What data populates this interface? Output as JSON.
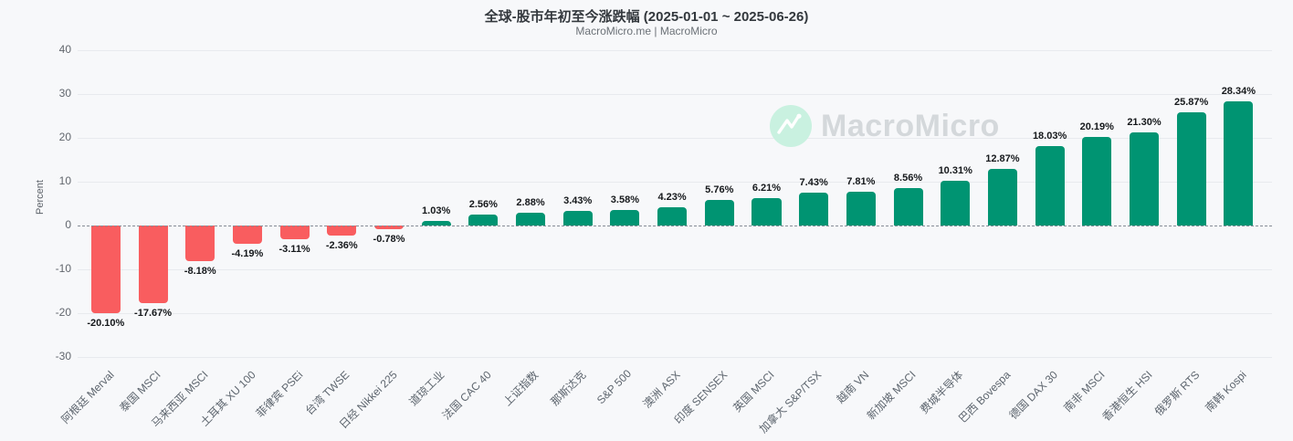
{
  "title": "全球-股市年初至今涨跌幅 (2025-01-01 ~ 2025-06-26)",
  "subtitle": "MacroMicro.me | MacroMicro",
  "watermark": {
    "text": "MacroMicro",
    "icon": "macromicro-mountain-logo"
  },
  "colors": {
    "positive": "#009472",
    "negative": "#f95d5f",
    "background": "#f7f8fa",
    "grid": "#e8eaee",
    "zero_line": "#858c96",
    "value_label": "#15181b",
    "axis_text": "#61666d",
    "watermark_circle": "#c9f1e0"
  },
  "chart_data": {
    "type": "bar",
    "title": "全球-股市年初至今涨跌幅 (2025-01-01 ~ 2025-06-26)",
    "subtitle": "MacroMicro.me | MacroMicro",
    "xlabel": "",
    "ylabel": "Percent",
    "ylim": [
      -30,
      40
    ],
    "yticks": [
      40,
      30,
      20,
      10,
      0,
      -10,
      -20,
      -30
    ],
    "grid": true,
    "zero_line_style": "dashed",
    "legend_position": "none",
    "categories": [
      "阿根廷 Merval",
      "泰国 MSCI",
      "马来西亚 MSCI",
      "土耳其 XU 100",
      "菲律宾 PSEi",
      "台湾 TWSE",
      "日经 Nikkei 225",
      "道琼工业",
      "法国 CAC 40",
      "上证指数",
      "那斯达克",
      "S&P 500",
      "澳洲 ASX",
      "印度 SENSEX",
      "英国 MSCI",
      "加拿大 S&P/TSX",
      "越南 VN",
      "新加坡 MSCI",
      "费城半导体",
      "巴西 Bovespa",
      "德国 DAX 30",
      "南非 MSCI",
      "香港恒生 HSI",
      "俄罗斯 RTS",
      "南韩 Kospi"
    ],
    "values": [
      -20.1,
      -17.67,
      -8.18,
      -4.19,
      -3.11,
      -2.36,
      -0.78,
      1.03,
      2.56,
      2.88,
      3.43,
      3.58,
      4.23,
      5.76,
      6.21,
      7.43,
      7.81,
      8.56,
      10.31,
      12.87,
      18.03,
      20.19,
      21.3,
      25.87,
      28.34
    ],
    "value_labels": [
      "-20.10%",
      "-17.67%",
      "-8.18%",
      "-4.19%",
      "-3.11%",
      "-2.36%",
      "-0.78%",
      "1.03%",
      "2.56%",
      "2.88%",
      "3.43%",
      "3.58%",
      "4.23%",
      "5.76%",
      "6.21%",
      "7.43%",
      "7.81%",
      "8.56%",
      "10.31%",
      "12.87%",
      "18.03%",
      "20.19%",
      "21.30%",
      "25.87%",
      "28.34%"
    ]
  }
}
